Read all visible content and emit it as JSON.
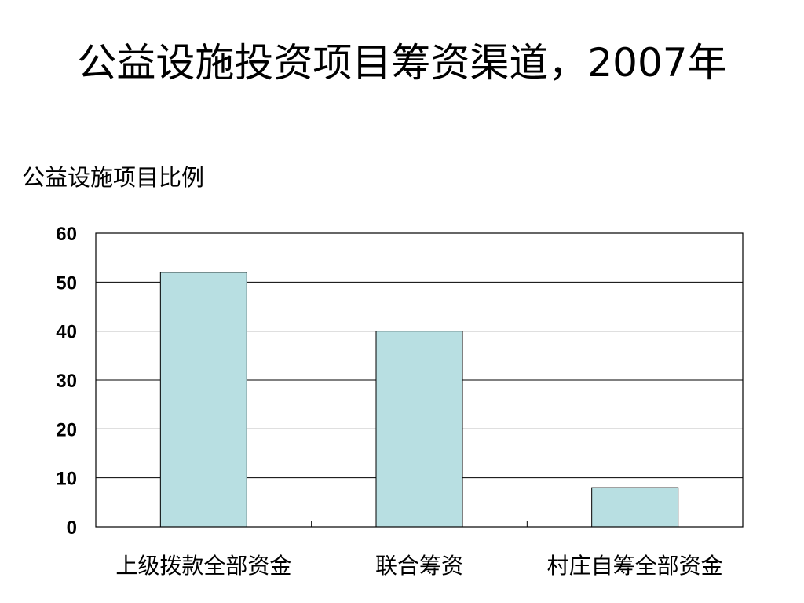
{
  "page": {
    "title": "公益设施投资项目筹资渠道，2007年"
  },
  "chart_data": {
    "type": "bar",
    "title": "公益设施项目比例",
    "xlabel": "",
    "ylabel": "",
    "categories": [
      "上级拨款全部资金",
      "联合筹资",
      "村庄自筹全部资金"
    ],
    "values": [
      52,
      40,
      8
    ],
    "ylim": [
      0,
      60
    ],
    "yticks": [
      0,
      10,
      20,
      30,
      40,
      50,
      60
    ],
    "grid": true,
    "legend": "none",
    "colors": {
      "bar_fill": "#b8dfe2",
      "bar_stroke": "#000000",
      "grid": "#000000",
      "frame": "#000000"
    }
  }
}
